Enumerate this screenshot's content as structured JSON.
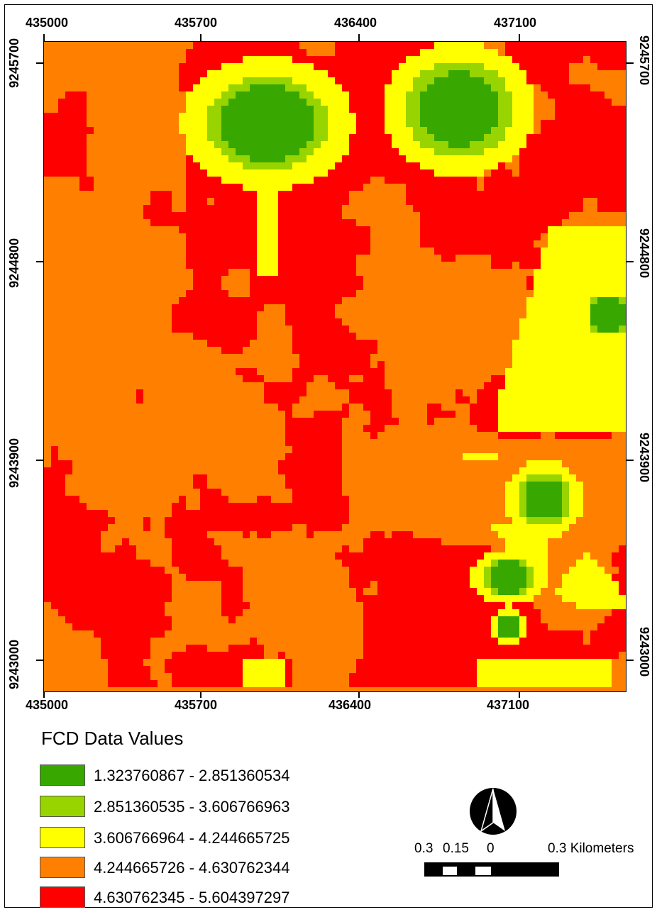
{
  "map": {
    "x_ticks": [
      "435000",
      "435700",
      "436400",
      "437100"
    ],
    "y_ticks": [
      "9245700",
      "9244800",
      "9243900",
      "9243000"
    ],
    "colors": {
      "class1": "#38a800",
      "class2": "#98d400",
      "class3": "#ffff00",
      "class4": "#ff8000",
      "class5": "#ff0000"
    }
  },
  "legend": {
    "title": "FCD Data Values",
    "items": [
      {
        "label": "1.323760867 - 2.851360534",
        "color": "#38a800"
      },
      {
        "label": "2.851360535 - 3.606766963",
        "color": "#98d400"
      },
      {
        "label": "3.606766964 - 4.244665725",
        "color": "#ffff00"
      },
      {
        "label": "4.244665726 - 4.630762344",
        "color": "#ff8000"
      },
      {
        "label": "4.630762345 - 5.604397297",
        "color": "#ff0000"
      }
    ]
  },
  "scale_bar": {
    "labels": [
      "0.3",
      "0.15",
      "0",
      "0.3 Kilometers"
    ]
  },
  "north_arrow": "north-arrow-icon"
}
